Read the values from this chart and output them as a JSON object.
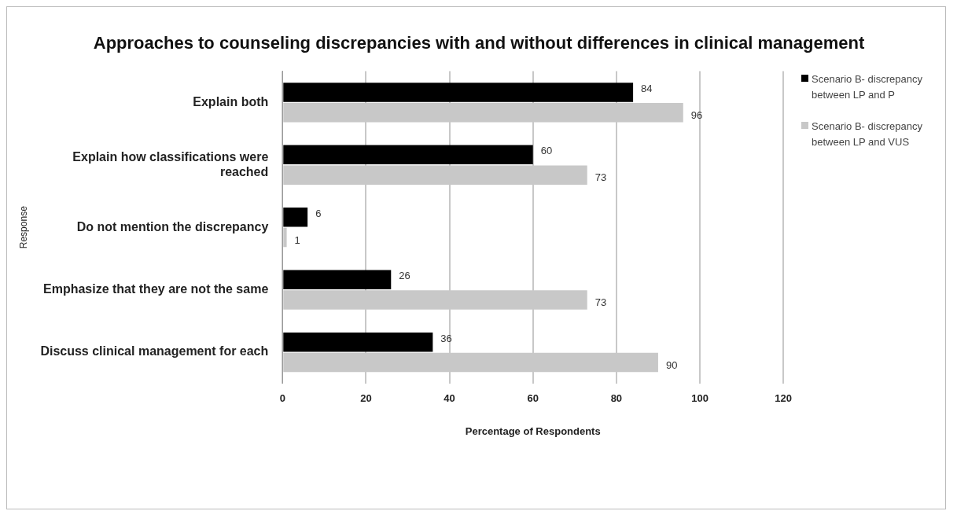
{
  "chart_data": {
    "type": "bar",
    "orientation": "horizontal",
    "title": "Approaches to counseling discrepancies with and without differences in clinical management",
    "xlabel": "Percentage of Respondents",
    "ylabel": "Response",
    "categories": [
      "Explain both",
      "Explain how classifications were reached",
      "Do not mention the discrepancy",
      "Emphasize that they are not the same",
      "Discuss clinical management for each"
    ],
    "series": [
      {
        "name": "Scenario B- discrepancy between LP and P",
        "color": "#000000",
        "values": [
          84,
          60,
          6,
          26,
          36
        ]
      },
      {
        "name": "Scenario B- discrepancy between LP and VUS",
        "color": "#c8c8c8",
        "values": [
          96,
          73,
          1,
          73,
          90
        ]
      }
    ],
    "xlim": [
      0,
      120
    ],
    "xticks": [
      0,
      20,
      40,
      60,
      80,
      100,
      120
    ],
    "grid": "x",
    "legend": "right",
    "data_labels": true
  }
}
